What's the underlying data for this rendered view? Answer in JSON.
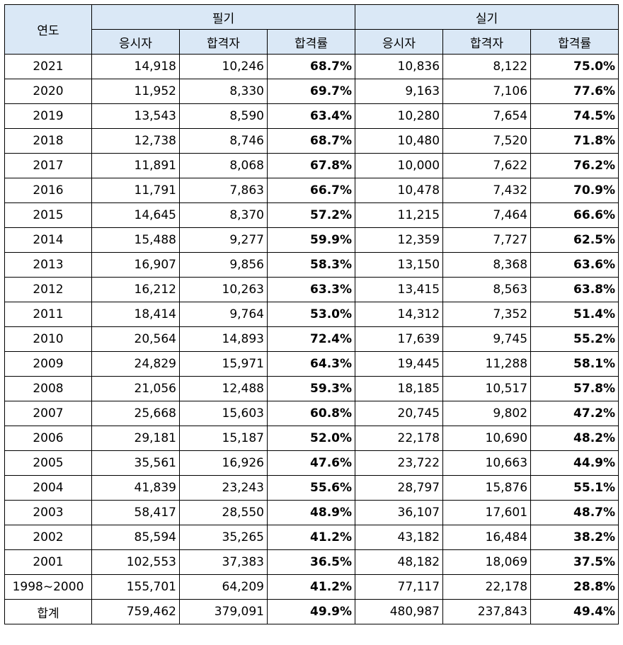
{
  "header": {
    "year_label": "연도",
    "written_label": "필기",
    "practical_label": "실기",
    "sub": [
      "응시자",
      "합격자",
      "합격률",
      "응시자",
      "합격자",
      "합격률"
    ]
  },
  "rows": [
    {
      "year": "2021",
      "w_app": "14,918",
      "w_pass": "10,246",
      "w_rate": "68.7%",
      "p_app": "10,836",
      "p_pass": "8,122",
      "p_rate": "75.0%"
    },
    {
      "year": "2020",
      "w_app": "11,952",
      "w_pass": "8,330",
      "w_rate": "69.7%",
      "p_app": "9,163",
      "p_pass": "7,106",
      "p_rate": "77.6%"
    },
    {
      "year": "2019",
      "w_app": "13,543",
      "w_pass": "8,590",
      "w_rate": "63.4%",
      "p_app": "10,280",
      "p_pass": "7,654",
      "p_rate": "74.5%"
    },
    {
      "year": "2018",
      "w_app": "12,738",
      "w_pass": "8,746",
      "w_rate": "68.7%",
      "p_app": "10,480",
      "p_pass": "7,520",
      "p_rate": "71.8%"
    },
    {
      "year": "2017",
      "w_app": "11,891",
      "w_pass": "8,068",
      "w_rate": "67.8%",
      "p_app": "10,000",
      "p_pass": "7,622",
      "p_rate": "76.2%"
    },
    {
      "year": "2016",
      "w_app": "11,791",
      "w_pass": "7,863",
      "w_rate": "66.7%",
      "p_app": "10,478",
      "p_pass": "7,432",
      "p_rate": "70.9%"
    },
    {
      "year": "2015",
      "w_app": "14,645",
      "w_pass": "8,370",
      "w_rate": "57.2%",
      "p_app": "11,215",
      "p_pass": "7,464",
      "p_rate": "66.6%"
    },
    {
      "year": "2014",
      "w_app": "15,488",
      "w_pass": "9,277",
      "w_rate": "59.9%",
      "p_app": "12,359",
      "p_pass": "7,727",
      "p_rate": "62.5%"
    },
    {
      "year": "2013",
      "w_app": "16,907",
      "w_pass": "9,856",
      "w_rate": "58.3%",
      "p_app": "13,150",
      "p_pass": "8,368",
      "p_rate": "63.6%"
    },
    {
      "year": "2012",
      "w_app": "16,212",
      "w_pass": "10,263",
      "w_rate": "63.3%",
      "p_app": "13,415",
      "p_pass": "8,563",
      "p_rate": "63.8%"
    },
    {
      "year": "2011",
      "w_app": "18,414",
      "w_pass": "9,764",
      "w_rate": "53.0%",
      "p_app": "14,312",
      "p_pass": "7,352",
      "p_rate": "51.4%"
    },
    {
      "year": "2010",
      "w_app": "20,564",
      "w_pass": "14,893",
      "w_rate": "72.4%",
      "p_app": "17,639",
      "p_pass": "9,745",
      "p_rate": "55.2%"
    },
    {
      "year": "2009",
      "w_app": "24,829",
      "w_pass": "15,971",
      "w_rate": "64.3%",
      "p_app": "19,445",
      "p_pass": "11,288",
      "p_rate": "58.1%"
    },
    {
      "year": "2008",
      "w_app": "21,056",
      "w_pass": "12,488",
      "w_rate": "59.3%",
      "p_app": "18,185",
      "p_pass": "10,517",
      "p_rate": "57.8%"
    },
    {
      "year": "2007",
      "w_app": "25,668",
      "w_pass": "15,603",
      "w_rate": "60.8%",
      "p_app": "20,745",
      "p_pass": "9,802",
      "p_rate": "47.2%"
    },
    {
      "year": "2006",
      "w_app": "29,181",
      "w_pass": "15,187",
      "w_rate": "52.0%",
      "p_app": "22,178",
      "p_pass": "10,690",
      "p_rate": "48.2%"
    },
    {
      "year": "2005",
      "w_app": "35,561",
      "w_pass": "16,926",
      "w_rate": "47.6%",
      "p_app": "23,722",
      "p_pass": "10,663",
      "p_rate": "44.9%"
    },
    {
      "year": "2004",
      "w_app": "41,839",
      "w_pass": "23,243",
      "w_rate": "55.6%",
      "p_app": "28,797",
      "p_pass": "15,876",
      "p_rate": "55.1%"
    },
    {
      "year": "2003",
      "w_app": "58,417",
      "w_pass": "28,550",
      "w_rate": "48.9%",
      "p_app": "36,107",
      "p_pass": "17,601",
      "p_rate": "48.7%"
    },
    {
      "year": "2002",
      "w_app": "85,594",
      "w_pass": "35,265",
      "w_rate": "41.2%",
      "p_app": "43,182",
      "p_pass": "16,484",
      "p_rate": "38.2%"
    },
    {
      "year": "2001",
      "w_app": "102,553",
      "w_pass": "37,383",
      "w_rate": "36.5%",
      "p_app": "48,182",
      "p_pass": "18,069",
      "p_rate": "37.5%"
    },
    {
      "year": "1998~2000",
      "w_app": "155,701",
      "w_pass": "64,209",
      "w_rate": "41.2%",
      "p_app": "77,117",
      "p_pass": "22,178",
      "p_rate": "28.8%"
    },
    {
      "year": "합계",
      "w_app": "759,462",
      "w_pass": "379,091",
      "w_rate": "49.9%",
      "p_app": "480,987",
      "p_pass": "237,843",
      "p_rate": "49.4%"
    }
  ],
  "colors": {
    "header_bg": "#dae8f6",
    "border": "#000000"
  }
}
